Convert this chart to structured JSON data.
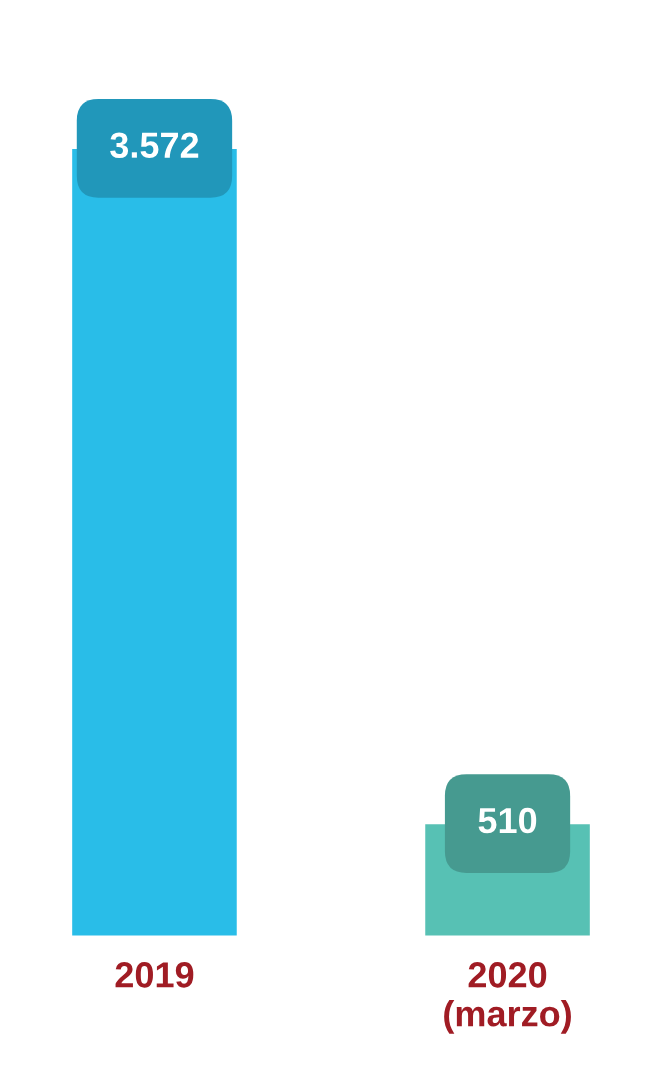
{
  "chart_data": {
    "type": "bar",
    "categories": [
      "2019",
      "2020\n(marzo)"
    ],
    "values": [
      3572,
      510
    ],
    "colors": [
      "#29bde8",
      "#57c1b4"
    ],
    "value_labels": [
      "3.572",
      "510"
    ],
    "tick_labels": "x",
    "grid": false,
    "legend": false
  }
}
